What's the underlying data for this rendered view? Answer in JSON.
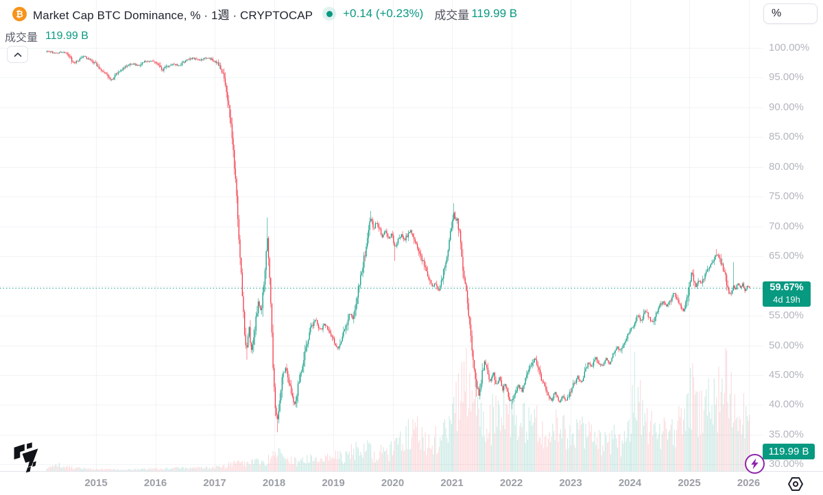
{
  "header": {
    "bitcoin_glyph": "₿",
    "title": "Market Cap BTC Dominance, % · 1週 · CRYPTOCAP",
    "change": "+0.14 (+0.23%)",
    "volume_label": "成交量",
    "volume_value": "119.99 B"
  },
  "legend_row2": {
    "label": "成交量",
    "value": "119.99 B"
  },
  "unit_box": {
    "label": "%"
  },
  "price_scale": {
    "ticks": [
      "100.00%",
      "95.00%",
      "90.00%",
      "85.00%",
      "80.00%",
      "75.00%",
      "70.00%",
      "65.00%",
      "55.00%",
      "50.00%",
      "45.00%",
      "40.00%",
      "35.00%",
      "30.00%"
    ],
    "last_price_label": "59.67%",
    "countdown": "4d 19h",
    "volume_badge": "119.99 B"
  },
  "time_scale": {
    "ticks": [
      "2015",
      "2016",
      "2017",
      "2018",
      "2019",
      "2020",
      "2021",
      "2022",
      "2023",
      "2024",
      "2025",
      "2026"
    ]
  },
  "icons": {
    "collapse": "chevron-up-icon",
    "lightning": "lightning-icon",
    "settings": "gear-hex-icon",
    "logo": "tradingview-logo"
  },
  "colors": {
    "up": "#089981",
    "down": "#f23645",
    "up_vol": "rgba(8,153,129,0.22)",
    "down_vol": "rgba(242,54,69,0.20)",
    "accent": "#089981",
    "axis_text": "#b2b5be",
    "grid": "rgba(70,80,110,0.07)",
    "badge_bg": "#089981",
    "bitcoin_orange": "#f7931a",
    "bolt_purple": "#8e24aa"
  },
  "chart_data": {
    "type": "candlestick",
    "title": "Market Cap BTC Dominance, %",
    "symbol": "CRYPTOCAP",
    "interval": "1週 (1W)",
    "ylabel": "%",
    "y_axis_ticks_percent": [
      100,
      95,
      90,
      85,
      80,
      75,
      70,
      65,
      60,
      55,
      50,
      45,
      40,
      35,
      30
    ],
    "x_axis_years": [
      2015,
      2016,
      2017,
      2018,
      2019,
      2020,
      2021,
      2022,
      2023,
      2024,
      2025,
      2026
    ],
    "t_start": 2014.17,
    "t_end": 2026.02,
    "last_price": 59.67,
    "last_change": 0.14,
    "last_change_pct": 0.23,
    "volume_last_billions": 119.99,
    "price_anchors": [
      [
        2014.17,
        99.5
      ],
      [
        2014.3,
        99.1
      ],
      [
        2014.45,
        99.3
      ],
      [
        2014.55,
        98.7
      ],
      [
        2014.62,
        97.5
      ],
      [
        2014.7,
        97.9
      ],
      [
        2014.78,
        98.6
      ],
      [
        2014.9,
        98.1
      ],
      [
        2015.0,
        97.3
      ],
      [
        2015.1,
        96.2
      ],
      [
        2015.2,
        95.2
      ],
      [
        2015.28,
        94.6
      ],
      [
        2015.38,
        96.0
      ],
      [
        2015.5,
        96.8
      ],
      [
        2015.6,
        97.4
      ],
      [
        2015.7,
        97.0
      ],
      [
        2015.8,
        97.7
      ],
      [
        2015.95,
        97.9
      ],
      [
        2016.05,
        97.2
      ],
      [
        2016.12,
        96.2
      ],
      [
        2016.2,
        96.9
      ],
      [
        2016.3,
        97.4
      ],
      [
        2016.4,
        97.0
      ],
      [
        2016.5,
        97.8
      ],
      [
        2016.62,
        98.3
      ],
      [
        2016.75,
        98.0
      ],
      [
        2016.88,
        98.4
      ],
      [
        2017.0,
        97.8
      ],
      [
        2017.08,
        97.1
      ],
      [
        2017.15,
        95.6
      ],
      [
        2017.2,
        93.2
      ],
      [
        2017.25,
        89.5
      ],
      [
        2017.3,
        84.0
      ],
      [
        2017.34,
        79.0
      ],
      [
        2017.38,
        73.5
      ],
      [
        2017.42,
        66.0
      ],
      [
        2017.46,
        60.0
      ],
      [
        2017.5,
        52.5
      ],
      [
        2017.54,
        49.5
      ],
      [
        2017.58,
        53.0
      ],
      [
        2017.62,
        49.0
      ],
      [
        2017.66,
        51.5
      ],
      [
        2017.7,
        55.0
      ],
      [
        2017.74,
        57.5
      ],
      [
        2017.78,
        55.5
      ],
      [
        2017.82,
        59.0
      ],
      [
        2017.86,
        64.0
      ],
      [
        2017.89,
        68.5
      ],
      [
        2017.92,
        63.0
      ],
      [
        2017.95,
        56.0
      ],
      [
        2017.98,
        47.5
      ],
      [
        2018.02,
        40.0
      ],
      [
        2018.06,
        37.3
      ],
      [
        2018.1,
        41.0
      ],
      [
        2018.15,
        45.0
      ],
      [
        2018.2,
        46.5
      ],
      [
        2018.25,
        43.5
      ],
      [
        2018.3,
        41.5
      ],
      [
        2018.35,
        39.9
      ],
      [
        2018.4,
        42.5
      ],
      [
        2018.45,
        45.5
      ],
      [
        2018.5,
        48.0
      ],
      [
        2018.55,
        50.5
      ],
      [
        2018.62,
        53.0
      ],
      [
        2018.7,
        54.3
      ],
      [
        2018.78,
        52.5
      ],
      [
        2018.85,
        53.8
      ],
      [
        2018.95,
        52.0
      ],
      [
        2019.02,
        50.5
      ],
      [
        2019.08,
        49.3
      ],
      [
        2019.15,
        51.5
      ],
      [
        2019.22,
        53.5
      ],
      [
        2019.28,
        55.5
      ],
      [
        2019.33,
        54.5
      ],
      [
        2019.38,
        57.5
      ],
      [
        2019.44,
        60.0
      ],
      [
        2019.5,
        63.5
      ],
      [
        2019.56,
        67.0
      ],
      [
        2019.6,
        70.0
      ],
      [
        2019.63,
        71.3
      ],
      [
        2019.68,
        69.5
      ],
      [
        2019.72,
        70.8
      ],
      [
        2019.78,
        69.6
      ],
      [
        2019.83,
        68.2
      ],
      [
        2019.88,
        69.2
      ],
      [
        2019.93,
        67.9
      ],
      [
        2019.98,
        68.6
      ],
      [
        2020.04,
        66.6
      ],
      [
        2020.1,
        67.8
      ],
      [
        2020.15,
        68.8
      ],
      [
        2020.2,
        67.6
      ],
      [
        2020.26,
        68.8
      ],
      [
        2020.3,
        69.6
      ],
      [
        2020.36,
        67.8
      ],
      [
        2020.42,
        66.4
      ],
      [
        2020.48,
        65.0
      ],
      [
        2020.54,
        63.2
      ],
      [
        2020.6,
        61.5
      ],
      [
        2020.66,
        59.8
      ],
      [
        2020.72,
        60.6
      ],
      [
        2020.78,
        59.2
      ],
      [
        2020.84,
        61.8
      ],
      [
        2020.9,
        64.0
      ],
      [
        2020.95,
        67.0
      ],
      [
        2021.0,
        70.5
      ],
      [
        2021.03,
        72.5
      ],
      [
        2021.06,
        70.8
      ],
      [
        2021.09,
        71.6
      ],
      [
        2021.13,
        68.5
      ],
      [
        2021.17,
        64.5
      ],
      [
        2021.22,
        60.5
      ],
      [
        2021.27,
        56.0
      ],
      [
        2021.32,
        51.5
      ],
      [
        2021.37,
        47.0
      ],
      [
        2021.42,
        43.0
      ],
      [
        2021.46,
        41.5
      ],
      [
        2021.5,
        45.0
      ],
      [
        2021.55,
        47.3
      ],
      [
        2021.6,
        45.3
      ],
      [
        2021.65,
        43.8
      ],
      [
        2021.7,
        45.5
      ],
      [
        2021.75,
        43.4
      ],
      [
        2021.8,
        44.6
      ],
      [
        2021.85,
        42.4
      ],
      [
        2021.9,
        43.6
      ],
      [
        2021.95,
        41.6
      ],
      [
        2022.0,
        40.4
      ],
      [
        2022.06,
        42.0
      ],
      [
        2022.12,
        43.4
      ],
      [
        2022.18,
        42.3
      ],
      [
        2022.24,
        44.2
      ],
      [
        2022.3,
        45.8
      ],
      [
        2022.36,
        47.2
      ],
      [
        2022.4,
        48.0
      ],
      [
        2022.45,
        46.2
      ],
      [
        2022.5,
        44.6
      ],
      [
        2022.56,
        43.2
      ],
      [
        2022.62,
        41.8
      ],
      [
        2022.68,
        40.6
      ],
      [
        2022.74,
        42.2
      ],
      [
        2022.8,
        40.4
      ],
      [
        2022.86,
        41.6
      ],
      [
        2022.92,
        40.6
      ],
      [
        2022.98,
        41.8
      ],
      [
        2023.05,
        43.4
      ],
      [
        2023.12,
        44.8
      ],
      [
        2023.18,
        43.8
      ],
      [
        2023.25,
        45.8
      ],
      [
        2023.3,
        47.2
      ],
      [
        2023.36,
        46.2
      ],
      [
        2023.42,
        48.0
      ],
      [
        2023.48,
        47.0
      ],
      [
        2023.54,
        46.4
      ],
      [
        2023.6,
        47.8
      ],
      [
        2023.66,
        47.0
      ],
      [
        2023.72,
        48.6
      ],
      [
        2023.78,
        49.8
      ],
      [
        2023.84,
        49.0
      ],
      [
        2023.9,
        50.6
      ],
      [
        2023.96,
        51.6
      ],
      [
        2024.02,
        52.6
      ],
      [
        2024.08,
        54.0
      ],
      [
        2024.14,
        55.0
      ],
      [
        2024.2,
        54.0
      ],
      [
        2024.26,
        55.8
      ],
      [
        2024.32,
        54.6
      ],
      [
        2024.38,
        53.8
      ],
      [
        2024.44,
        55.2
      ],
      [
        2024.5,
        56.6
      ],
      [
        2024.56,
        57.4
      ],
      [
        2024.62,
        56.4
      ],
      [
        2024.68,
        57.6
      ],
      [
        2024.74,
        58.8
      ],
      [
        2024.8,
        58.0
      ],
      [
        2024.85,
        56.8
      ],
      [
        2024.9,
        55.6
      ],
      [
        2024.95,
        57.5
      ],
      [
        2025.0,
        60.0
      ],
      [
        2025.04,
        62.8
      ],
      [
        2025.08,
        61.0
      ],
      [
        2025.12,
        59.8
      ],
      [
        2025.16,
        61.0
      ],
      [
        2025.2,
        60.4
      ],
      [
        2025.25,
        61.6
      ],
      [
        2025.3,
        62.6
      ],
      [
        2025.35,
        63.4
      ],
      [
        2025.4,
        64.4
      ],
      [
        2025.45,
        65.3
      ],
      [
        2025.5,
        64.9
      ],
      [
        2025.55,
        63.7
      ],
      [
        2025.6,
        61.7
      ],
      [
        2025.65,
        59.7
      ],
      [
        2025.7,
        58.4
      ],
      [
        2025.74,
        60.2
      ],
      [
        2025.78,
        59.4
      ],
      [
        2025.82,
        60.6
      ],
      [
        2025.86,
        59.6
      ],
      [
        2025.9,
        60.5
      ],
      [
        2025.94,
        59.3
      ],
      [
        2025.98,
        59.9
      ],
      [
        2026.02,
        59.67
      ]
    ],
    "wick_events": [
      {
        "t": 2017.54,
        "low": 47.6
      },
      {
        "t": 2017.89,
        "high": 71.5
      },
      {
        "t": 2018.06,
        "low": 35.4
      },
      {
        "t": 2019.63,
        "high": 72.6
      },
      {
        "t": 2020.04,
        "low": 64.2
      },
      {
        "t": 2021.03,
        "high": 73.9
      },
      {
        "t": 2022.0,
        "low": 39.3
      },
      {
        "t": 2025.45,
        "high": 66.2
      },
      {
        "t": 2025.74,
        "high": 64.0
      }
    ],
    "volume_anchors": [
      [
        2014.17,
        0.02
      ],
      [
        2014.3,
        0.07
      ],
      [
        2014.45,
        0.04
      ],
      [
        2014.6,
        0.03
      ],
      [
        2015.0,
        0.015
      ],
      [
        2015.5,
        0.015
      ],
      [
        2016.0,
        0.02
      ],
      [
        2016.5,
        0.025
      ],
      [
        2017.0,
        0.03
      ],
      [
        2017.2,
        0.05
      ],
      [
        2017.4,
        0.07
      ],
      [
        2017.6,
        0.08
      ],
      [
        2017.8,
        0.07
      ],
      [
        2017.95,
        0.11
      ],
      [
        2018.05,
        0.15
      ],
      [
        2018.2,
        0.1
      ],
      [
        2018.4,
        0.08
      ],
      [
        2018.6,
        0.1
      ],
      [
        2018.8,
        0.17
      ],
      [
        2019.0,
        0.13
      ],
      [
        2019.15,
        0.12
      ],
      [
        2019.3,
        0.16
      ],
      [
        2019.45,
        0.24
      ],
      [
        2019.55,
        0.2
      ],
      [
        2019.7,
        0.14
      ],
      [
        2019.85,
        0.16
      ],
      [
        2020.0,
        0.18
      ],
      [
        2020.15,
        0.24
      ],
      [
        2020.3,
        0.4
      ],
      [
        2020.45,
        0.32
      ],
      [
        2020.6,
        0.24
      ],
      [
        2020.75,
        0.28
      ],
      [
        2020.9,
        0.34
      ],
      [
        2021.0,
        0.45
      ],
      [
        2021.1,
        0.75
      ],
      [
        2021.18,
        0.95
      ],
      [
        2021.28,
        0.8
      ],
      [
        2021.38,
        0.65
      ],
      [
        2021.48,
        0.5
      ],
      [
        2021.6,
        0.42
      ],
      [
        2021.75,
        0.5
      ],
      [
        2021.9,
        0.45
      ],
      [
        2022.0,
        0.42
      ],
      [
        2022.15,
        0.36
      ],
      [
        2022.3,
        0.46
      ],
      [
        2022.45,
        0.38
      ],
      [
        2022.6,
        0.32
      ],
      [
        2022.75,
        0.36
      ],
      [
        2022.85,
        0.42
      ],
      [
        2023.0,
        0.28
      ],
      [
        2023.15,
        0.36
      ],
      [
        2023.3,
        0.32
      ],
      [
        2023.45,
        0.26
      ],
      [
        2023.6,
        0.24
      ],
      [
        2023.75,
        0.28
      ],
      [
        2023.9,
        0.24
      ],
      [
        2024.0,
        0.35
      ],
      [
        2024.08,
        0.8
      ],
      [
        2024.16,
        0.6
      ],
      [
        2024.25,
        0.45
      ],
      [
        2024.35,
        0.38
      ],
      [
        2024.5,
        0.34
      ],
      [
        2024.65,
        0.3
      ],
      [
        2024.8,
        0.38
      ],
      [
        2024.95,
        0.4
      ],
      [
        2025.02,
        0.75
      ],
      [
        2025.1,
        0.55
      ],
      [
        2025.2,
        0.48
      ],
      [
        2025.3,
        0.58
      ],
      [
        2025.4,
        0.52
      ],
      [
        2025.5,
        0.62
      ],
      [
        2025.58,
        0.9
      ],
      [
        2025.65,
        0.7
      ],
      [
        2025.75,
        0.5
      ],
      [
        2025.85,
        0.45
      ],
      [
        2025.95,
        0.55
      ],
      [
        2026.02,
        0.4
      ]
    ],
    "grid_on": true,
    "legend_position": "top-left"
  }
}
